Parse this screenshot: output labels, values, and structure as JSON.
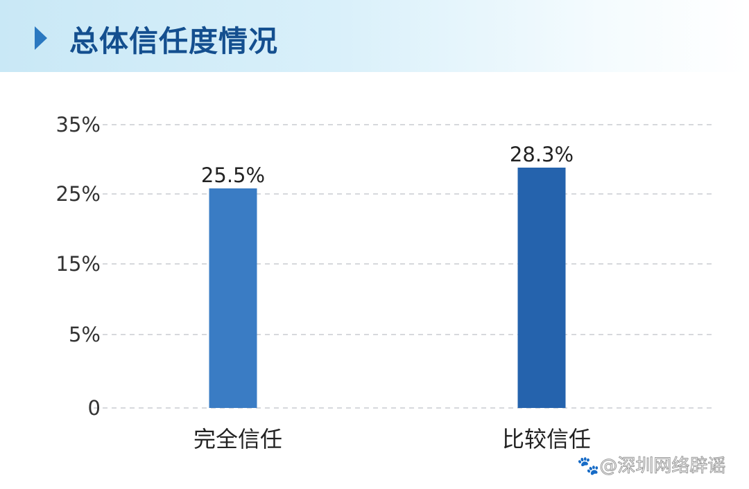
{
  "title": "总体信任度情况",
  "watermark": "@深圳网络辟谣",
  "chart_data": {
    "type": "bar",
    "title": "",
    "categories": [
      "完全信任",
      "比较信任"
    ],
    "values": [
      25.5,
      28.3
    ],
    "data_labels": [
      "25.5%",
      "28.3%"
    ],
    "y_ticks": [
      "0",
      "5%",
      "15%",
      "25%",
      "35%"
    ],
    "y_tick_values": [
      0,
      5,
      15,
      25,
      35
    ],
    "ylim": [
      0,
      35
    ],
    "grid": true,
    "colors": [
      "#3a7cc4",
      "#2563ad"
    ]
  }
}
